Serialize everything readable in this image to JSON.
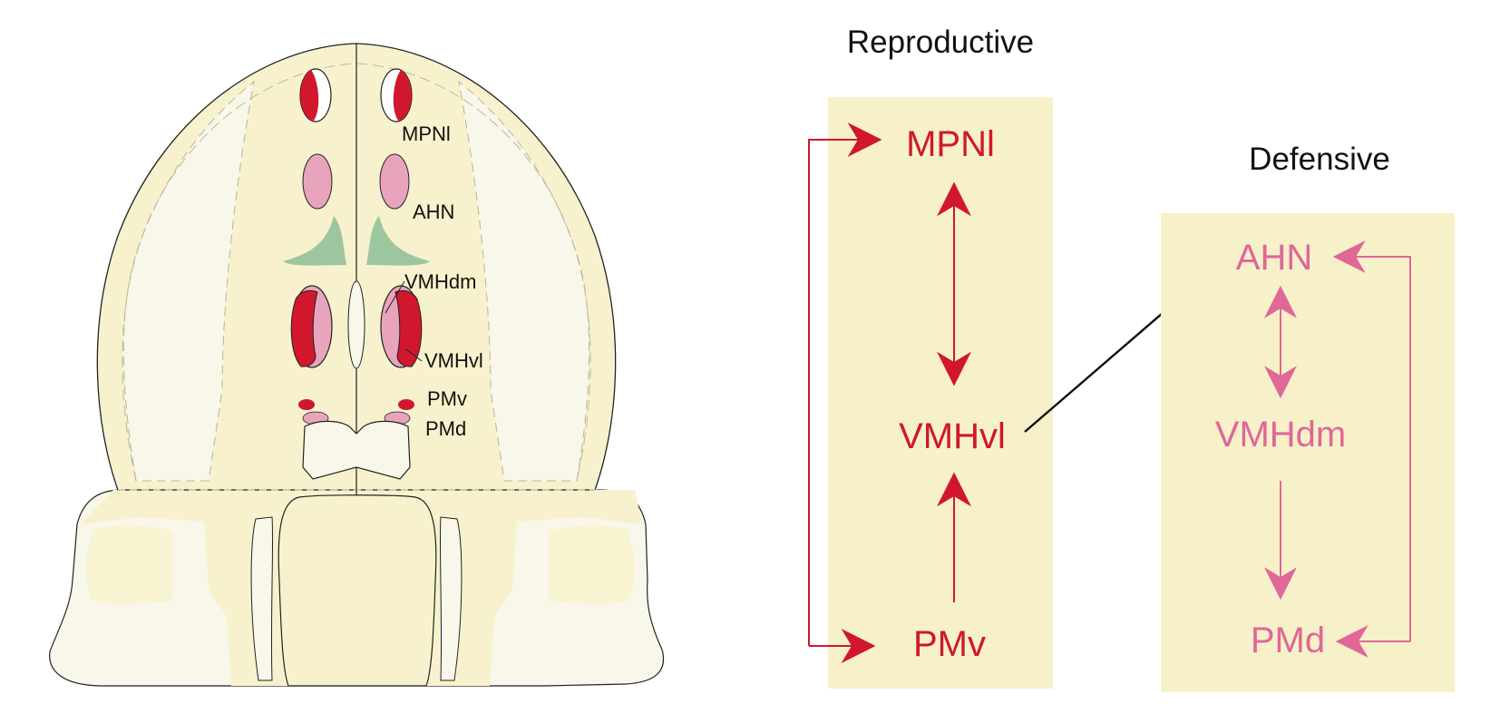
{
  "colors": {
    "brain_fill": "#f7f2cd",
    "brain_light": "#f8f7ea",
    "panel_fill": "#f7f1c9",
    "reproductive": "#d0172e",
    "defensive": "#e06797",
    "pink_nucleus": "#e8a4bc",
    "green_nucleus": "#9dc6a0",
    "outline": "#222222",
    "black_arrow": "#111111"
  },
  "brain_labels": {
    "mpnl": "MPNl",
    "ahn": "AHN",
    "vmhdm": "VMHdm",
    "vmhvl": "VMHvl",
    "pmv": "PMv",
    "pmd": "PMd"
  },
  "reproductive": {
    "title": "Reproductive",
    "nodes": {
      "top": "MPNl",
      "middle": "VMHvl",
      "bottom": "PMv"
    }
  },
  "defensive": {
    "title": "Defensive",
    "nodes": {
      "top": "AHN",
      "middle": "VMHdm",
      "bottom": "PMd"
    }
  }
}
